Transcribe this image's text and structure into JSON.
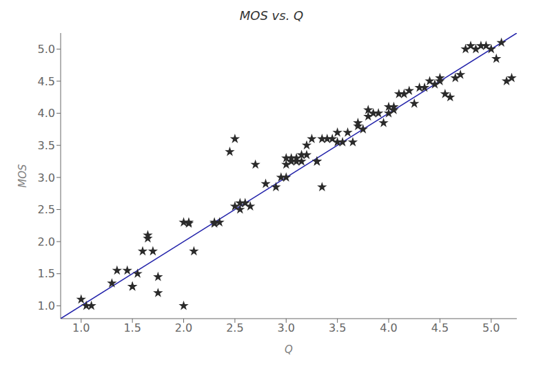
{
  "chart_data": {
    "type": "scatter",
    "title": "MOS  vs.  Q",
    "xlabel": "Q",
    "ylabel": "MOS",
    "xlim": [
      0.8,
      5.25
    ],
    "ylim": [
      0.8,
      5.25
    ],
    "xticks": [
      {
        "value": 1,
        "label": "1.0"
      },
      1.5,
      {
        "value": 2,
        "label": "2.0"
      },
      2.5,
      {
        "value": 3,
        "label": "3.0"
      },
      3.5,
      {
        "value": 4,
        "label": "4.0"
      },
      4.5,
      {
        "value": 5,
        "label": "5.0"
      }
    ],
    "yticks": [
      {
        "value": 1,
        "label": "1.0"
      },
      1.5,
      {
        "value": 2,
        "label": "2.0"
      },
      2.5,
      {
        "value": 3,
        "label": "3.0"
      },
      3.5,
      {
        "value": 4,
        "label": "4.0"
      },
      4.5,
      {
        "value": 5,
        "label": "5.0"
      }
    ],
    "grid": false,
    "series": [
      {
        "type": "line",
        "color": "#2222aa",
        "line_style": "solid",
        "x": [
          0.8,
          5.25
        ],
        "values": [
          0.8,
          5.25
        ]
      },
      {
        "type": "scatter",
        "color": "#2a2a2a",
        "marker": "star",
        "x": [
          1.0,
          1.05,
          1.1,
          1.3,
          1.35,
          1.5,
          1.55,
          1.6,
          1.65,
          1.65,
          1.7,
          1.75,
          1.75,
          2.0,
          2.0,
          2.05,
          2.05,
          2.1,
          2.3,
          2.3,
          2.35,
          2.5,
          2.55,
          2.6,
          2.65,
          2.7,
          2.8,
          2.9,
          2.95,
          3.0,
          3.0,
          3.0,
          3.05,
          3.05,
          3.1,
          3.1,
          3.15,
          3.15,
          3.2,
          3.2,
          3.3,
          3.35,
          3.4,
          3.45,
          3.5,
          3.5,
          3.55,
          3.6,
          3.65,
          3.7,
          3.7,
          3.75,
          3.8,
          3.8,
          3.85,
          3.9,
          3.95,
          4.0,
          4.0,
          4.05,
          4.05,
          4.1,
          4.15,
          4.2,
          4.25,
          4.3,
          4.35,
          4.4,
          4.45,
          4.5,
          4.5,
          4.55,
          4.6,
          4.65,
          4.7,
          4.75,
          4.8,
          4.85,
          4.9,
          4.95,
          5.0,
          5.05,
          5.1,
          5.15,
          5.2,
          2.45,
          2.5,
          2.55,
          3.25,
          3.3,
          3.35,
          1.45,
          1.5
        ],
        "values": [
          1.1,
          1.0,
          1.0,
          1.35,
          1.55,
          1.3,
          1.5,
          1.85,
          2.05,
          2.1,
          1.85,
          1.45,
          1.2,
          1.0,
          2.3,
          2.28,
          2.3,
          1.85,
          2.3,
          2.28,
          2.3,
          2.55,
          2.5,
          2.6,
          2.55,
          3.2,
          2.9,
          2.85,
          3.0,
          3.0,
          3.2,
          3.3,
          3.25,
          3.3,
          3.3,
          3.25,
          3.25,
          3.35,
          3.35,
          3.5,
          3.25,
          3.6,
          3.6,
          3.6,
          3.55,
          3.7,
          3.55,
          3.7,
          3.55,
          3.8,
          3.85,
          3.75,
          3.95,
          4.05,
          4.0,
          4.0,
          3.85,
          4.0,
          4.1,
          4.05,
          4.1,
          4.3,
          4.3,
          4.35,
          4.15,
          4.4,
          4.4,
          4.5,
          4.45,
          4.5,
          4.55,
          4.3,
          4.25,
          4.55,
          4.6,
          5.0,
          5.05,
          5.0,
          5.05,
          5.05,
          5.0,
          4.85,
          5.1,
          4.5,
          4.55,
          3.4,
          3.6,
          2.6,
          3.6,
          3.25,
          2.85,
          1.55,
          1.3
        ]
      }
    ]
  }
}
